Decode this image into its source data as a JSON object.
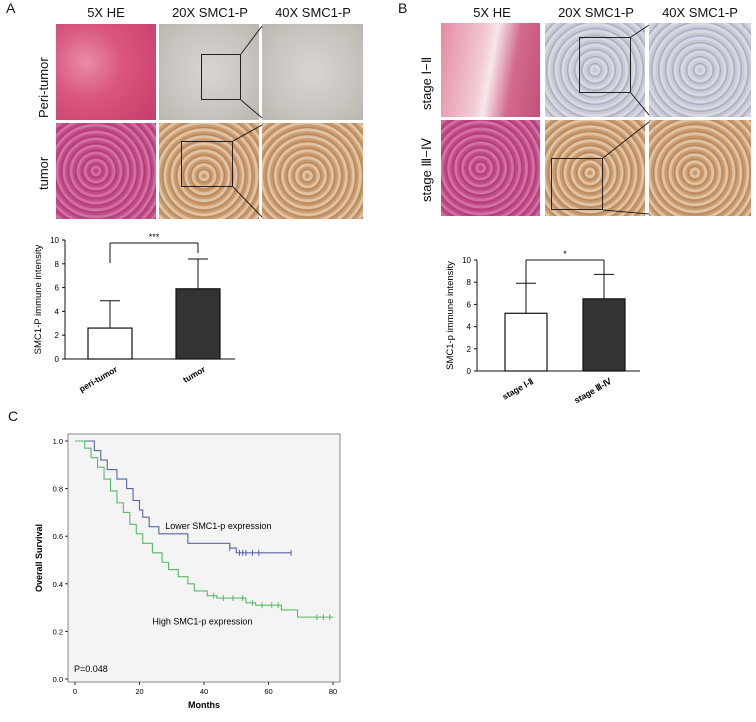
{
  "panel_a": {
    "letter": "A",
    "columns": [
      "5X HE",
      "20X  SMC1-P",
      "40X SMC1-P"
    ],
    "rows": [
      "Peri-tumor",
      "tumor"
    ]
  },
  "panel_b": {
    "letter": "B",
    "columns": [
      "5X  HE",
      "20X  SMC1-P",
      "40X  SMC1-P"
    ],
    "rows": [
      "stage Ⅰ−Ⅱ",
      "stage Ⅲ−Ⅳ"
    ]
  },
  "panel_c": {
    "letter": "C"
  },
  "chart_data": [
    {
      "type": "bar",
      "categories": [
        "peri-tumor",
        "tumor"
      ],
      "values": [
        2.6,
        5.9
      ],
      "errors": [
        2.3,
        2.5
      ],
      "bar_colors": [
        "#ffffff",
        "#333333"
      ],
      "ylabel": "SMC1-P immune intensity",
      "ylim": [
        0,
        10
      ],
      "yticks": [
        0,
        2,
        4,
        6,
        8,
        10
      ],
      "significance": "***"
    },
    {
      "type": "bar",
      "categories": [
        "stage Ⅰ-Ⅱ",
        "stage Ⅲ-Ⅳ"
      ],
      "values": [
        5.2,
        6.5
      ],
      "errors": [
        2.7,
        2.2
      ],
      "bar_colors": [
        "#ffffff",
        "#333333"
      ],
      "ylabel": "SMC1-p immune intensity",
      "ylim": [
        0,
        10
      ],
      "yticks": [
        0,
        2,
        4,
        6,
        8,
        10
      ],
      "significance": "*"
    },
    {
      "type": "line",
      "xlabel": "Months",
      "ylabel": "Overall Survival",
      "xlim": [
        0,
        80
      ],
      "ylim": [
        0,
        1.0
      ],
      "xticks": [
        0,
        20,
        40,
        60,
        80
      ],
      "yticks": [
        0.0,
        0.2,
        0.4,
        0.6,
        0.8,
        1.0
      ],
      "series": [
        {
          "name": "Lower SMC1-p expression",
          "color": "#5566aa",
          "points": [
            [
              0,
              1.0
            ],
            [
              5,
              1.0
            ],
            [
              6,
              0.96
            ],
            [
              8,
              0.92
            ],
            [
              10,
              0.88
            ],
            [
              13,
              0.84
            ],
            [
              16,
              0.8
            ],
            [
              18,
              0.75
            ],
            [
              20,
              0.71
            ],
            [
              21,
              0.68
            ],
            [
              23,
              0.64
            ],
            [
              26,
              0.61
            ],
            [
              35,
              0.57
            ],
            [
              48,
              0.55
            ],
            [
              50,
              0.53
            ],
            [
              67,
              0.53
            ]
          ],
          "censored": [
            48,
            51,
            52,
            53,
            55,
            57,
            67
          ]
        },
        {
          "name": "High SMC1-p expression",
          "color": "#55bb66",
          "points": [
            [
              0,
              1.0
            ],
            [
              3,
              0.97
            ],
            [
              5,
              0.93
            ],
            [
              7,
              0.89
            ],
            [
              9,
              0.84
            ],
            [
              11,
              0.79
            ],
            [
              13,
              0.74
            ],
            [
              15,
              0.7
            ],
            [
              17,
              0.65
            ],
            [
              19,
              0.61
            ],
            [
              21,
              0.57
            ],
            [
              24,
              0.53
            ],
            [
              27,
              0.49
            ],
            [
              29,
              0.46
            ],
            [
              32,
              0.43
            ],
            [
              35,
              0.4
            ],
            [
              37,
              0.37
            ],
            [
              41,
              0.35
            ],
            [
              44,
              0.34
            ],
            [
              48,
              0.34
            ],
            [
              53,
              0.32
            ],
            [
              56,
              0.31
            ],
            [
              60,
              0.31
            ],
            [
              64,
              0.29
            ],
            [
              69,
              0.26
            ],
            [
              80,
              0.26
            ]
          ],
          "censored": [
            43,
            46,
            49,
            52,
            55,
            58,
            61,
            63,
            75,
            77,
            79
          ]
        }
      ],
      "annotation": "P=0.048"
    }
  ]
}
